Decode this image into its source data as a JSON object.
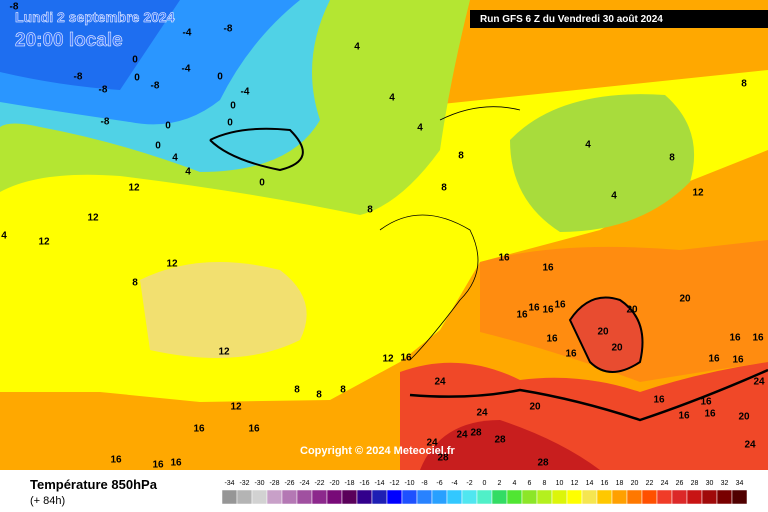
{
  "header": {
    "date": "Lundi 2 septembre 2024",
    "time": "20:00 locale",
    "run": "Run GFS 6 Z du Vendredi 30 août 2024"
  },
  "copyright": "Copyright © 2024 Meteociel.fr",
  "legend": {
    "title": "Température 850hPa",
    "subtitle": "(+ 84h)"
  },
  "colorbar": {
    "ticks": [
      -34,
      -32,
      -30,
      -28,
      -26,
      -24,
      -22,
      -20,
      -18,
      -16,
      -14,
      -12,
      -10,
      -8,
      -6,
      -4,
      -2,
      0,
      2,
      4,
      6,
      8,
      10,
      12,
      14,
      16,
      18,
      20,
      22,
      24,
      26,
      28,
      30,
      32,
      34
    ],
    "colors": [
      "#969696",
      "#b4b4b4",
      "#d2d2d2",
      "#c8a0c8",
      "#b478b4",
      "#a050a0",
      "#8c288c",
      "#780a78",
      "#5a005a",
      "#32008c",
      "#1e1eb4",
      "#0000ff",
      "#1e50ff",
      "#2882ff",
      "#28a0ff",
      "#32c8ff",
      "#50e6f0",
      "#50f0c8",
      "#32dc64",
      "#50e632",
      "#8ce628",
      "#b4f01e",
      "#dcf50a",
      "#ffff00",
      "#f5e650",
      "#ffc800",
      "#ffa000",
      "#ff7800",
      "#ff5000",
      "#f03c28",
      "#dc2828",
      "#c81414",
      "#a00a0a",
      "#780000",
      "#500000"
    ]
  },
  "contour_labels": [
    -8,
    -4,
    -8,
    0,
    -8,
    -8,
    -8,
    -4,
    0,
    0,
    -4,
    0,
    0,
    -8,
    0,
    0,
    4,
    4,
    0,
    4,
    4,
    4,
    8,
    8,
    8,
    12,
    12,
    12,
    12,
    8,
    12,
    12,
    16,
    8,
    8,
    8,
    12,
    16,
    16,
    16,
    16,
    16,
    8,
    4,
    4,
    8,
    12,
    16,
    16,
    16,
    16,
    16,
    16,
    20,
    20,
    20,
    20,
    16,
    16,
    16,
    16,
    16,
    16,
    24,
    24,
    24,
    20,
    16,
    16,
    16,
    16,
    20,
    24,
    24,
    24,
    28,
    28,
    28,
    28,
    4
  ]
}
